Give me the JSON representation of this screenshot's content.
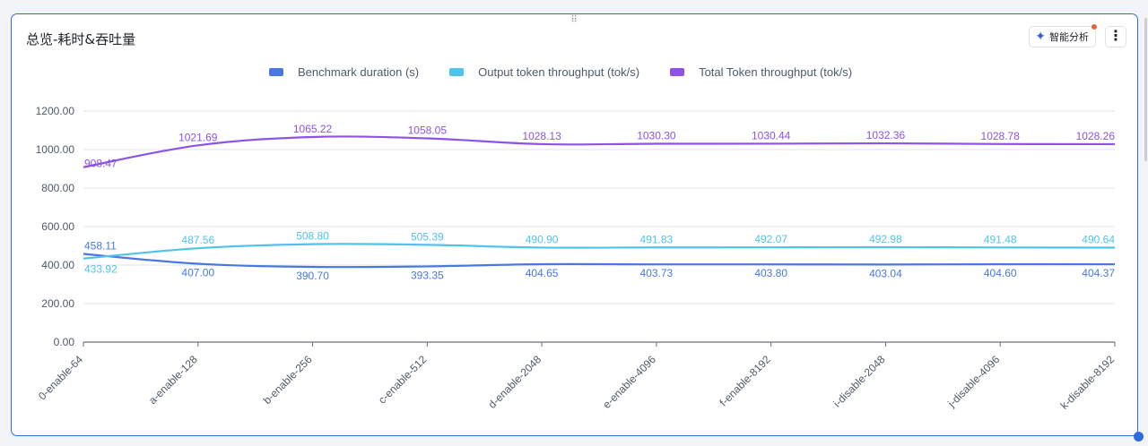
{
  "header": {
    "title": "总览-耗时&吞吐量",
    "ai_button_label": "智能分析",
    "more_button_label": "⋮",
    "drag_handle_label": "⠿"
  },
  "colors": {
    "Benchmark duration (s)": "#4a78e0",
    "Output token throughput (tok/s)": "#4fc3ec",
    "Total Token throughput (tok/s)": "#8c53e6"
  },
  "chart_data": {
    "type": "line",
    "title": "",
    "xlabel": "",
    "ylabel": "",
    "ylim": [
      0,
      1200
    ],
    "yticks": [
      "0.00",
      "200.00",
      "400.00",
      "600.00",
      "800.00",
      "1000.00",
      "1200.00"
    ],
    "grid": true,
    "legend_position": "top",
    "categories": [
      "0-enable-64",
      "a-enable-128",
      "b-enable-256",
      "c-enable-512",
      "d-enable-2048",
      "e-enable-4096",
      "f-enable-8192",
      "i-disable-2048",
      "j-disable-4096",
      "k-disable-8192"
    ],
    "series": [
      {
        "name": "Benchmark duration (s)",
        "values": [
          458.11,
          407.0,
          390.7,
          393.35,
          404.65,
          403.73,
          403.8,
          403.04,
          404.6,
          404.37
        ],
        "labels": [
          "458.11",
          "407.00",
          "390.70",
          "393.35",
          "404.65",
          "403.73",
          "403.80",
          "403.04",
          "404.60",
          "404.37"
        ]
      },
      {
        "name": "Output token throughput (tok/s)",
        "values": [
          433.92,
          487.56,
          508.8,
          505.39,
          490.9,
          491.83,
          492.07,
          492.98,
          491.48,
          490.64
        ],
        "labels": [
          "433.92",
          "487.56",
          "508.80",
          "505.39",
          "490.90",
          "491.83",
          "492.07",
          "492.98",
          "491.48",
          "490.64"
        ]
      },
      {
        "name": "Total Token throughput (tok/s)",
        "values": [
          908.47,
          1021.69,
          1065.22,
          1058.05,
          1028.13,
          1030.3,
          1030.44,
          1032.36,
          1028.78,
          1028.26
        ],
        "labels": [
          "908.47",
          "1021.69",
          "1065.22",
          "1058.05",
          "1028.13",
          "1030.30",
          "1030.44",
          "1032.36",
          "1028.78",
          "1028.26"
        ]
      }
    ]
  }
}
